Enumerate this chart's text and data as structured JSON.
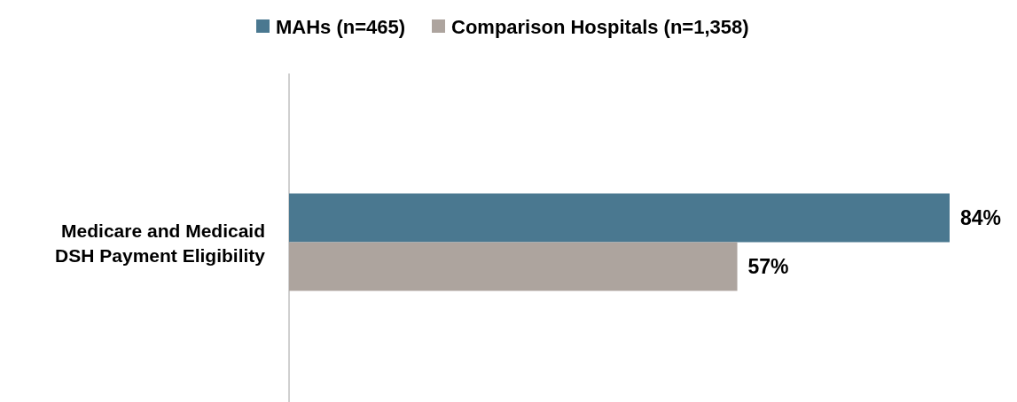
{
  "chart_data": {
    "type": "bar",
    "orientation": "horizontal",
    "categories": [
      "Medicare and Medicaid DSH Payment Eligibility"
    ],
    "series": [
      {
        "name": "MAHs (n=465)",
        "color": "#4a7890",
        "values": [
          84
        ],
        "value_labels": [
          "84%"
        ]
      },
      {
        "name": "Comparison Hospitals (n=1,358)",
        "color": "#ada49e",
        "values": [
          57
        ],
        "value_labels": [
          "57%"
        ]
      }
    ],
    "legend": "top"
  }
}
